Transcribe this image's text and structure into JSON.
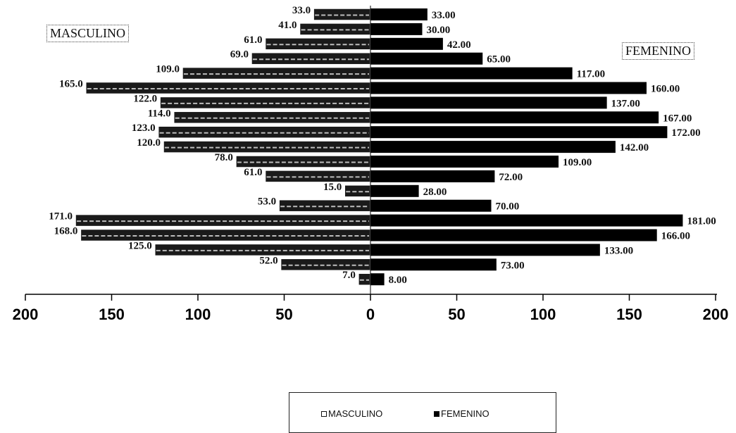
{
  "chart_data": {
    "type": "bar",
    "orientation": "horizontal",
    "layout": "population pyramid",
    "xlim": [
      -200,
      200
    ],
    "x_ticks": [
      "200",
      "150",
      "100",
      "50",
      "0",
      "50",
      "100",
      "150",
      "200"
    ],
    "series": [
      {
        "name": "MASCULINO",
        "values": [
          33.0,
          41.0,
          61.0,
          69.0,
          109.0,
          165.0,
          122.0,
          114.0,
          123.0,
          120.0,
          78.0,
          61.0,
          15.0,
          53.0,
          171.0,
          168.0,
          125.0,
          52.0,
          7.0
        ],
        "labels": [
          "33.0",
          "41.0",
          "61.0",
          "69.0",
          "109.0",
          "165.0",
          "122.0",
          "114.0",
          "123.0",
          "120.0",
          "78.0",
          "61.0",
          "15.0",
          "53.0",
          "171.0",
          "168.0",
          "125.0",
          "52.0",
          "7.0"
        ],
        "color": "#ffffff"
      },
      {
        "name": "FEMENINO",
        "values": [
          33.0,
          30.0,
          42.0,
          65.0,
          117.0,
          160.0,
          137.0,
          167.0,
          172.0,
          142.0,
          109.0,
          72.0,
          28.0,
          70.0,
          181.0,
          166.0,
          133.0,
          73.0,
          8.0
        ],
        "labels": [
          "33.00",
          "30.00",
          "42.00",
          "65.00",
          "117.00",
          "160.00",
          "137.00",
          "167.00",
          "172.00",
          "142.00",
          "109.00",
          "72.00",
          "28.00",
          "70.00",
          "181.00",
          "166.00",
          "133.00",
          "73.00",
          "8.00"
        ],
        "color": "#000000"
      }
    ],
    "side_labels": {
      "left": "MASCULINO",
      "right": "FEMENINO"
    },
    "legend": {
      "position": "bottom",
      "items": [
        "MASCULINO",
        "FEMENINO"
      ]
    },
    "grid": false
  }
}
